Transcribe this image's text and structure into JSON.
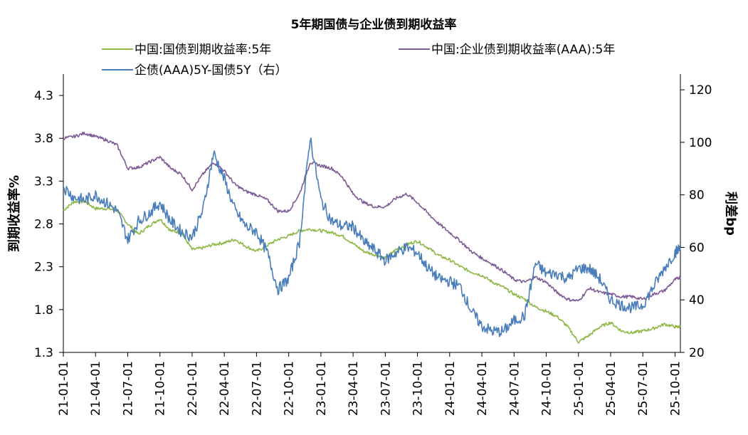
{
  "chart_data": {
    "type": "line",
    "title": "5年期国债与企业债到期收益率",
    "ylabel": "到期收益率%",
    "y2label": "利差bp",
    "ylim": [
      1.3,
      4.55
    ],
    "y_ticks": [
      1.3,
      1.8,
      2.3,
      2.8,
      3.3,
      3.8,
      4.3
    ],
    "y_tick_labels": [
      "1.3",
      "1.8",
      "2.3",
      "2.8",
      "3.3",
      "3.8",
      "4.3"
    ],
    "y2lim": [
      20,
      126
    ],
    "y2_ticks": [
      20,
      40,
      60,
      80,
      100,
      120
    ],
    "y2_tick_labels": [
      "20",
      "40",
      "60",
      "80",
      "100",
      "120"
    ],
    "x_tick_labels": [
      "21-01-01",
      "21-04-01",
      "21-07-01",
      "21-10-01",
      "22-01-01",
      "22-04-01",
      "22-07-01",
      "22-10-01",
      "23-01-01",
      "23-04-01",
      "23-07-01",
      "23-10-01",
      "24-01-01",
      "24-04-01",
      "24-07-01",
      "24-10-01",
      "25-01-01",
      "25-04-01",
      "25-07-01",
      "25-10-01"
    ],
    "x_range_months": [
      0,
      57.5
    ],
    "legend_position": "top",
    "series": [
      {
        "name": "中国:国债到期收益率:5年",
        "color": "#8fb847",
        "axis": "left",
        "x": [
          0,
          1,
          2,
          3,
          4,
          5,
          6,
          7,
          8,
          9,
          10,
          11,
          12,
          13,
          14,
          15,
          16,
          17,
          18,
          19,
          20,
          21,
          22,
          23,
          24,
          25,
          26,
          27,
          28,
          29,
          30,
          31,
          32,
          33,
          34,
          35,
          36,
          37,
          38,
          39,
          40,
          41,
          42,
          43,
          44,
          45,
          46,
          47,
          48,
          49,
          50,
          51,
          52,
          53,
          54,
          55,
          56,
          57,
          57.5
        ],
        "values": [
          2.96,
          3.06,
          3.06,
          2.98,
          2.98,
          2.96,
          2.8,
          2.68,
          2.78,
          2.86,
          2.72,
          2.7,
          2.5,
          2.52,
          2.56,
          2.58,
          2.62,
          2.54,
          2.48,
          2.55,
          2.62,
          2.66,
          2.72,
          2.74,
          2.72,
          2.7,
          2.66,
          2.57,
          2.48,
          2.44,
          2.4,
          2.5,
          2.56,
          2.6,
          2.52,
          2.43,
          2.38,
          2.3,
          2.24,
          2.2,
          2.12,
          2.06,
          1.98,
          1.92,
          1.83,
          1.78,
          1.72,
          1.6,
          1.42,
          1.5,
          1.6,
          1.65,
          1.55,
          1.53,
          1.55,
          1.58,
          1.63,
          1.6,
          1.6
        ]
      },
      {
        "name": "中国:企业债到期收益率(AAA):5年",
        "color": "#7d5c96",
        "axis": "left",
        "x": [
          0,
          1,
          2,
          3,
          4,
          5,
          6,
          7,
          8,
          9,
          10,
          11,
          12,
          13,
          14,
          15,
          16,
          17,
          18,
          19,
          20,
          21,
          22,
          23,
          24,
          25,
          26,
          27,
          28,
          29,
          30,
          31,
          32,
          33,
          34,
          35,
          36,
          37,
          38,
          39,
          40,
          41,
          42,
          43,
          44,
          45,
          46,
          47,
          48,
          49,
          50,
          51,
          52,
          53,
          54,
          55,
          56,
          57,
          57.5
        ],
        "values": [
          3.8,
          3.82,
          3.86,
          3.82,
          3.78,
          3.72,
          3.45,
          3.46,
          3.52,
          3.58,
          3.45,
          3.38,
          3.2,
          3.38,
          3.52,
          3.42,
          3.26,
          3.18,
          3.14,
          3.08,
          2.95,
          2.95,
          3.15,
          3.52,
          3.48,
          3.45,
          3.35,
          3.15,
          3.05,
          3.0,
          3.0,
          3.1,
          3.15,
          3.05,
          2.92,
          2.8,
          2.7,
          2.6,
          2.48,
          2.4,
          2.33,
          2.25,
          2.15,
          2.12,
          2.18,
          2.12,
          2.0,
          1.92,
          1.9,
          2.05,
          2.0,
          1.98,
          1.95,
          1.95,
          1.92,
          1.98,
          2.02,
          2.15,
          2.18
        ]
      },
      {
        "name": "企债(AAA)5Y-国债5Y（右）",
        "color": "#4a7ebb",
        "axis": "right",
        "x": [
          0,
          1,
          2,
          3,
          4,
          5,
          6,
          7,
          8,
          9,
          10,
          11,
          12,
          13,
          14,
          15,
          16,
          17,
          18,
          19,
          20,
          21,
          22,
          23,
          24,
          25,
          26,
          27,
          28,
          29,
          30,
          31,
          32,
          33,
          34,
          35,
          36,
          37,
          38,
          39,
          40,
          41,
          42,
          43,
          44,
          45,
          46,
          47,
          48,
          49,
          50,
          51,
          52,
          53,
          54,
          55,
          56,
          57,
          57.5
        ],
        "values": [
          83,
          79,
          78,
          80,
          77,
          74,
          63,
          70,
          73,
          77,
          70,
          66,
          64,
          74,
          96,
          86,
          74,
          68,
          66,
          58,
          44,
          48,
          62,
          102,
          78,
          70,
          68,
          68,
          62,
          59,
          55,
          58,
          60,
          58,
          52,
          48,
          47,
          45,
          36,
          30,
          28,
          28,
          32,
          34,
          54,
          50,
          50,
          48,
          52,
          52,
          48,
          40,
          38,
          37,
          38,
          45,
          52,
          58,
          60
        ]
      }
    ]
  }
}
